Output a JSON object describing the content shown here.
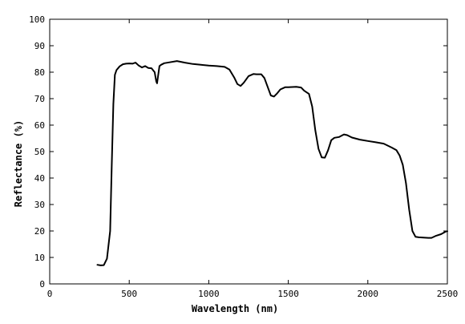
{
  "chart_data": {
    "type": "line",
    "title": "",
    "xlabel": "Wavelength (nm)",
    "ylabel": "Reflectance (%)",
    "xlim": [
      0,
      2500
    ],
    "ylim": [
      0,
      100
    ],
    "xticks": [
      0,
      500,
      1000,
      1500,
      2000,
      2500
    ],
    "yticks": [
      0,
      10,
      20,
      30,
      40,
      50,
      60,
      70,
      80,
      90,
      100
    ],
    "grid": false,
    "legend": "none",
    "line_color": "#000000",
    "series": [
      {
        "x": [
          300,
          320,
          340,
          360,
          380,
          390,
          400,
          410,
          420,
          440,
          460,
          480,
          500,
          520,
          540,
          560,
          580,
          600,
          620,
          640,
          660,
          670,
          675,
          680,
          690,
          700,
          720,
          750,
          800,
          850,
          900,
          950,
          1000,
          1050,
          1100,
          1130,
          1160,
          1180,
          1200,
          1220,
          1250,
          1280,
          1300,
          1330,
          1350,
          1370,
          1390,
          1410,
          1430,
          1450,
          1480,
          1500,
          1550,
          1580,
          1600,
          1630,
          1650,
          1670,
          1690,
          1710,
          1730,
          1750,
          1770,
          1790,
          1820,
          1850,
          1870,
          1900,
          1950,
          2000,
          2050,
          2100,
          2150,
          2180,
          2200,
          2220,
          2240,
          2260,
          2280,
          2300,
          2320,
          2350,
          2380,
          2400,
          2430,
          2460,
          2490,
          2500
        ],
        "y": [
          7.2,
          7.0,
          7.1,
          9.5,
          20,
          45,
          68,
          79,
          80.8,
          82.2,
          83,
          83.2,
          83.3,
          83.2,
          83.6,
          82.5,
          81.8,
          82.3,
          81.6,
          81.5,
          80,
          76.5,
          75.8,
          78,
          82.3,
          82.8,
          83.4,
          83.7,
          84.2,
          83.6,
          83.1,
          82.8,
          82.5,
          82.3,
          82,
          81,
          78,
          75.5,
          74.8,
          76,
          78.5,
          79.3,
          79.2,
          79.2,
          77.8,
          74.5,
          71.2,
          70.8,
          72,
          73.5,
          74.3,
          74.3,
          74.5,
          74.2,
          73,
          71.8,
          67,
          58,
          51,
          47.8,
          47.7,
          50.5,
          54.3,
          55.2,
          55.5,
          56.5,
          56.2,
          55.3,
          54.5,
          54,
          53.5,
          53,
          51.5,
          50.5,
          48.5,
          45,
          38,
          28,
          20,
          17.8,
          17.6,
          17.5,
          17.4,
          17.4,
          18.2,
          18.8,
          19.8,
          19.9
        ]
      }
    ]
  }
}
